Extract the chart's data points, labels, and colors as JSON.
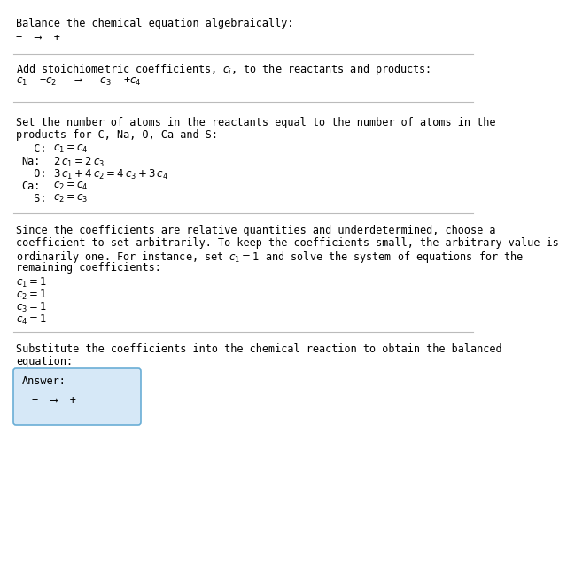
{
  "bg_color": "#ffffff",
  "text_color": "#000000",
  "line_color": "#cccccc",
  "title": "Balance the chemical equation algebraically:",
  "line1_plain": "+  ⟶  +",
  "section2_title": "Add stoichiometric coefficients, $c_i$, to the reactants and products:",
  "section2_eq": "$c_1$  +$c_2$   ⟶   $c_3$  +$c_4$",
  "section3_title_line1": "Set the number of atoms in the reactants equal to the number of atoms in the",
  "section3_title_line2": "products for C, Na, O, Ca and S:",
  "atom_equations": [
    [
      "  C:",
      "$c_1 = c_4$"
    ],
    [
      "Na:",
      "$2\\,c_1 = 2\\,c_3$"
    ],
    [
      "  O:",
      "$3\\,c_1 + 4\\,c_2 = 4\\,c_3 + 3\\,c_4$"
    ],
    [
      "Ca:",
      "$c_2 = c_4$"
    ],
    [
      "  S:",
      "$c_2 = c_3$"
    ]
  ],
  "section4_lines": [
    "Since the coefficients are relative quantities and underdetermined, choose a",
    "coefficient to set arbitrarily. To keep the coefficients small, the arbitrary value is",
    "ordinarily one. For instance, set $c_1 = 1$ and solve the system of equations for the",
    "remaining coefficients:"
  ],
  "coeff_solutions": [
    "$c_1 = 1$",
    "$c_2 = 1$",
    "$c_3 = 1$",
    "$c_4 = 1$"
  ],
  "section5_line1": "Substitute the coefficients into the chemical reaction to obtain the balanced",
  "section5_line2": "equation:",
  "answer_box_label": "Answer:",
  "answer_eq": "+  ⟶  +",
  "box_color": "#d6e8f7",
  "box_border": "#6aaed6"
}
